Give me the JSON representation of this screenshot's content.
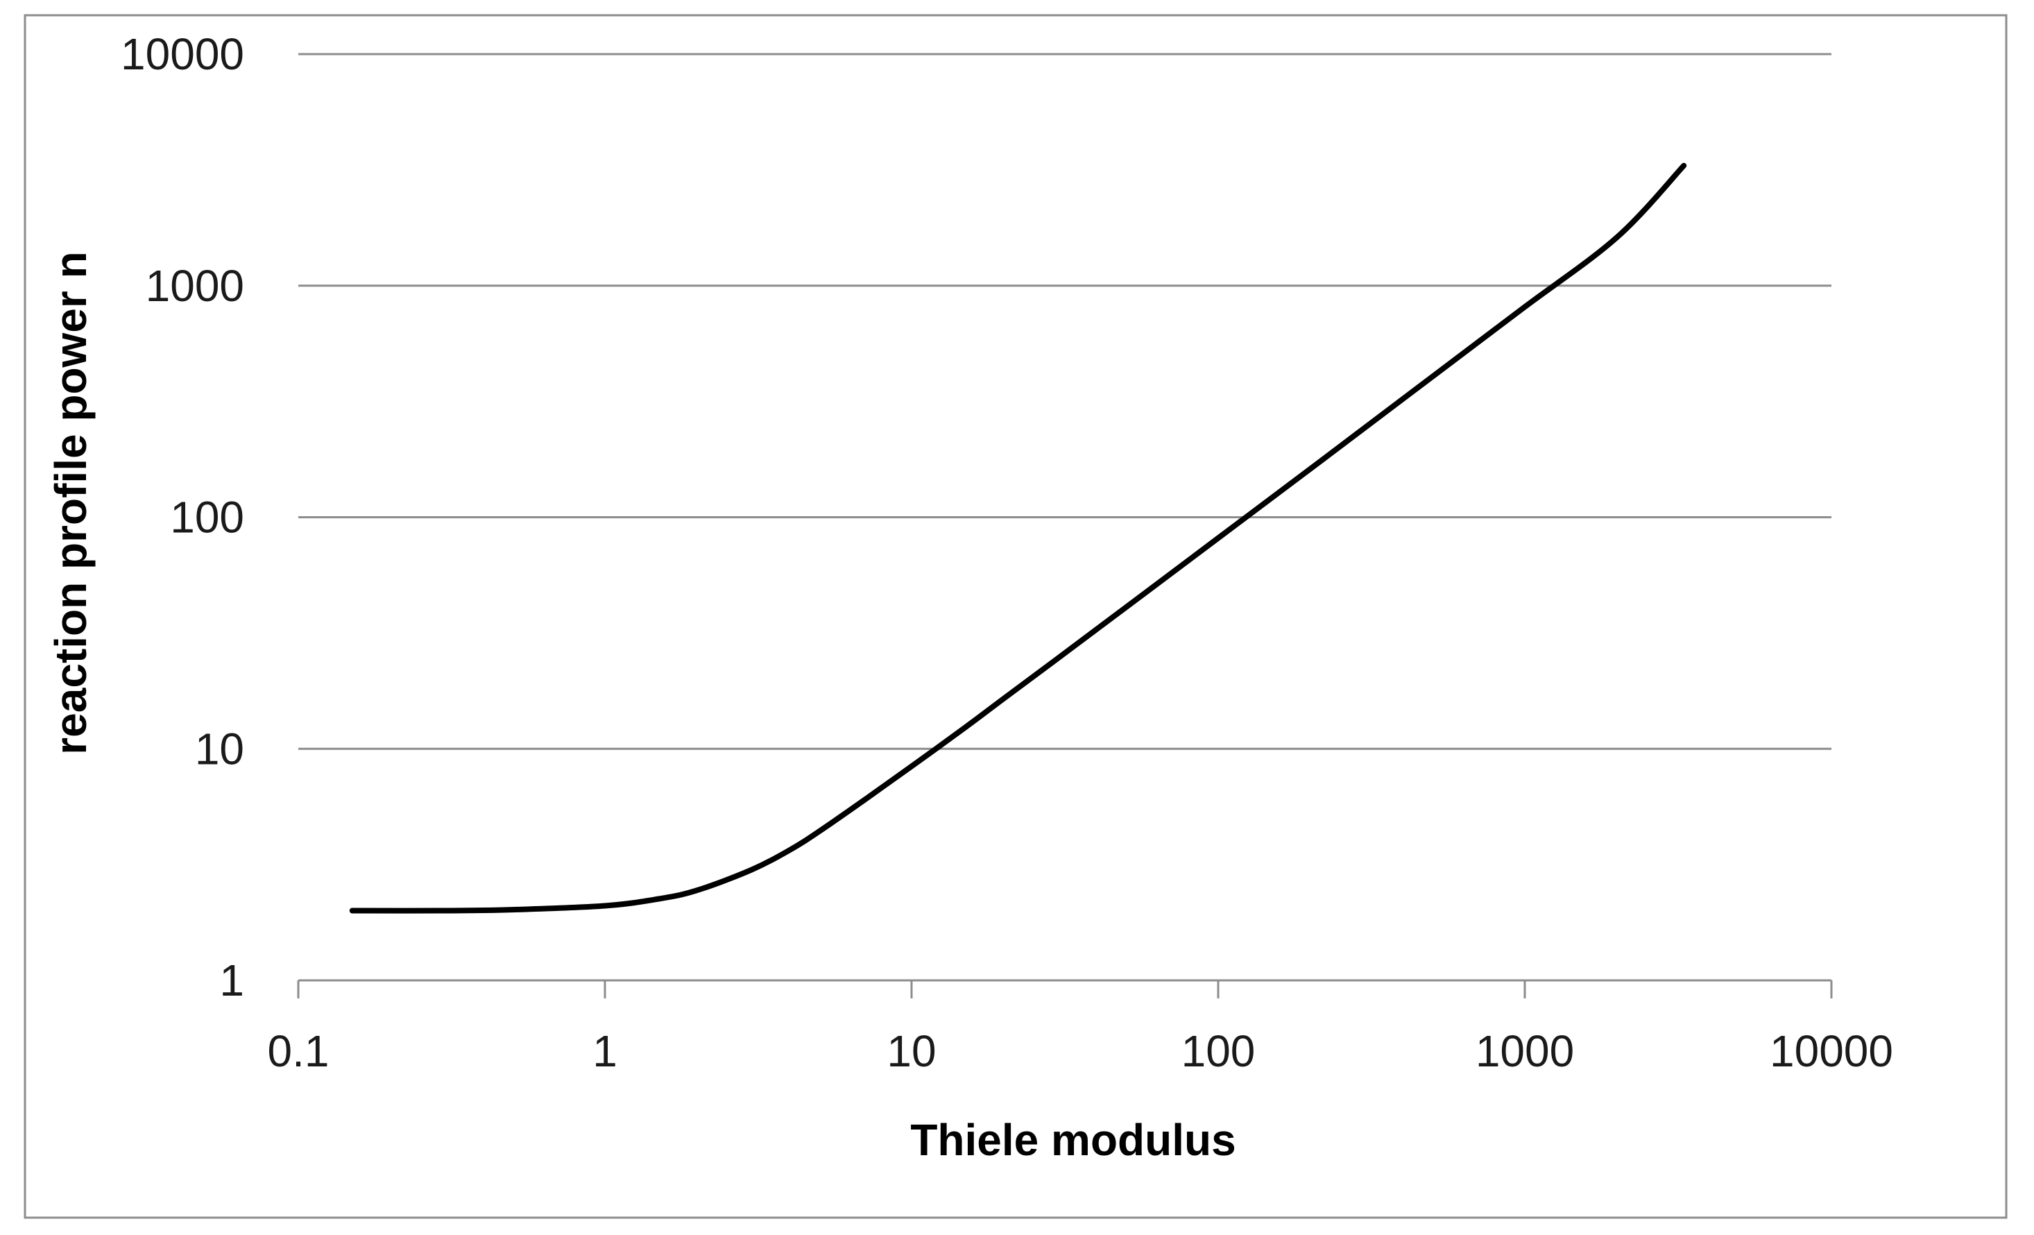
{
  "chart_data": {
    "type": "line",
    "title": "",
    "xlabel": "Thiele modulus",
    "ylabel": "reaction profile power n",
    "x_scale": "log",
    "y_scale": "log",
    "xlim": [
      0.1,
      10000
    ],
    "ylim": [
      1,
      10000
    ],
    "x_ticks": [
      "0.1",
      "1",
      "10",
      "100",
      "1000",
      "10000"
    ],
    "y_ticks": [
      "1",
      "10",
      "100",
      "1000",
      "10000"
    ],
    "grid": "horizontal",
    "legend": "none",
    "series": [
      {
        "color": "#000000",
        "x": [
          0.15,
          0.3,
          0.5,
          1,
          1.5,
          2,
          3,
          4,
          5,
          7,
          10,
          15,
          20,
          30,
          50,
          100,
          200,
          500,
          1000,
          2000,
          3300
        ],
        "y": [
          2.0,
          2.0,
          2.02,
          2.1,
          2.25,
          2.45,
          3.0,
          3.65,
          4.4,
          6.0,
          8.4,
          12.4,
          16.5,
          24.6,
          40.8,
          81.3,
          162,
          405,
          810,
          1620,
          3300
        ]
      }
    ]
  }
}
